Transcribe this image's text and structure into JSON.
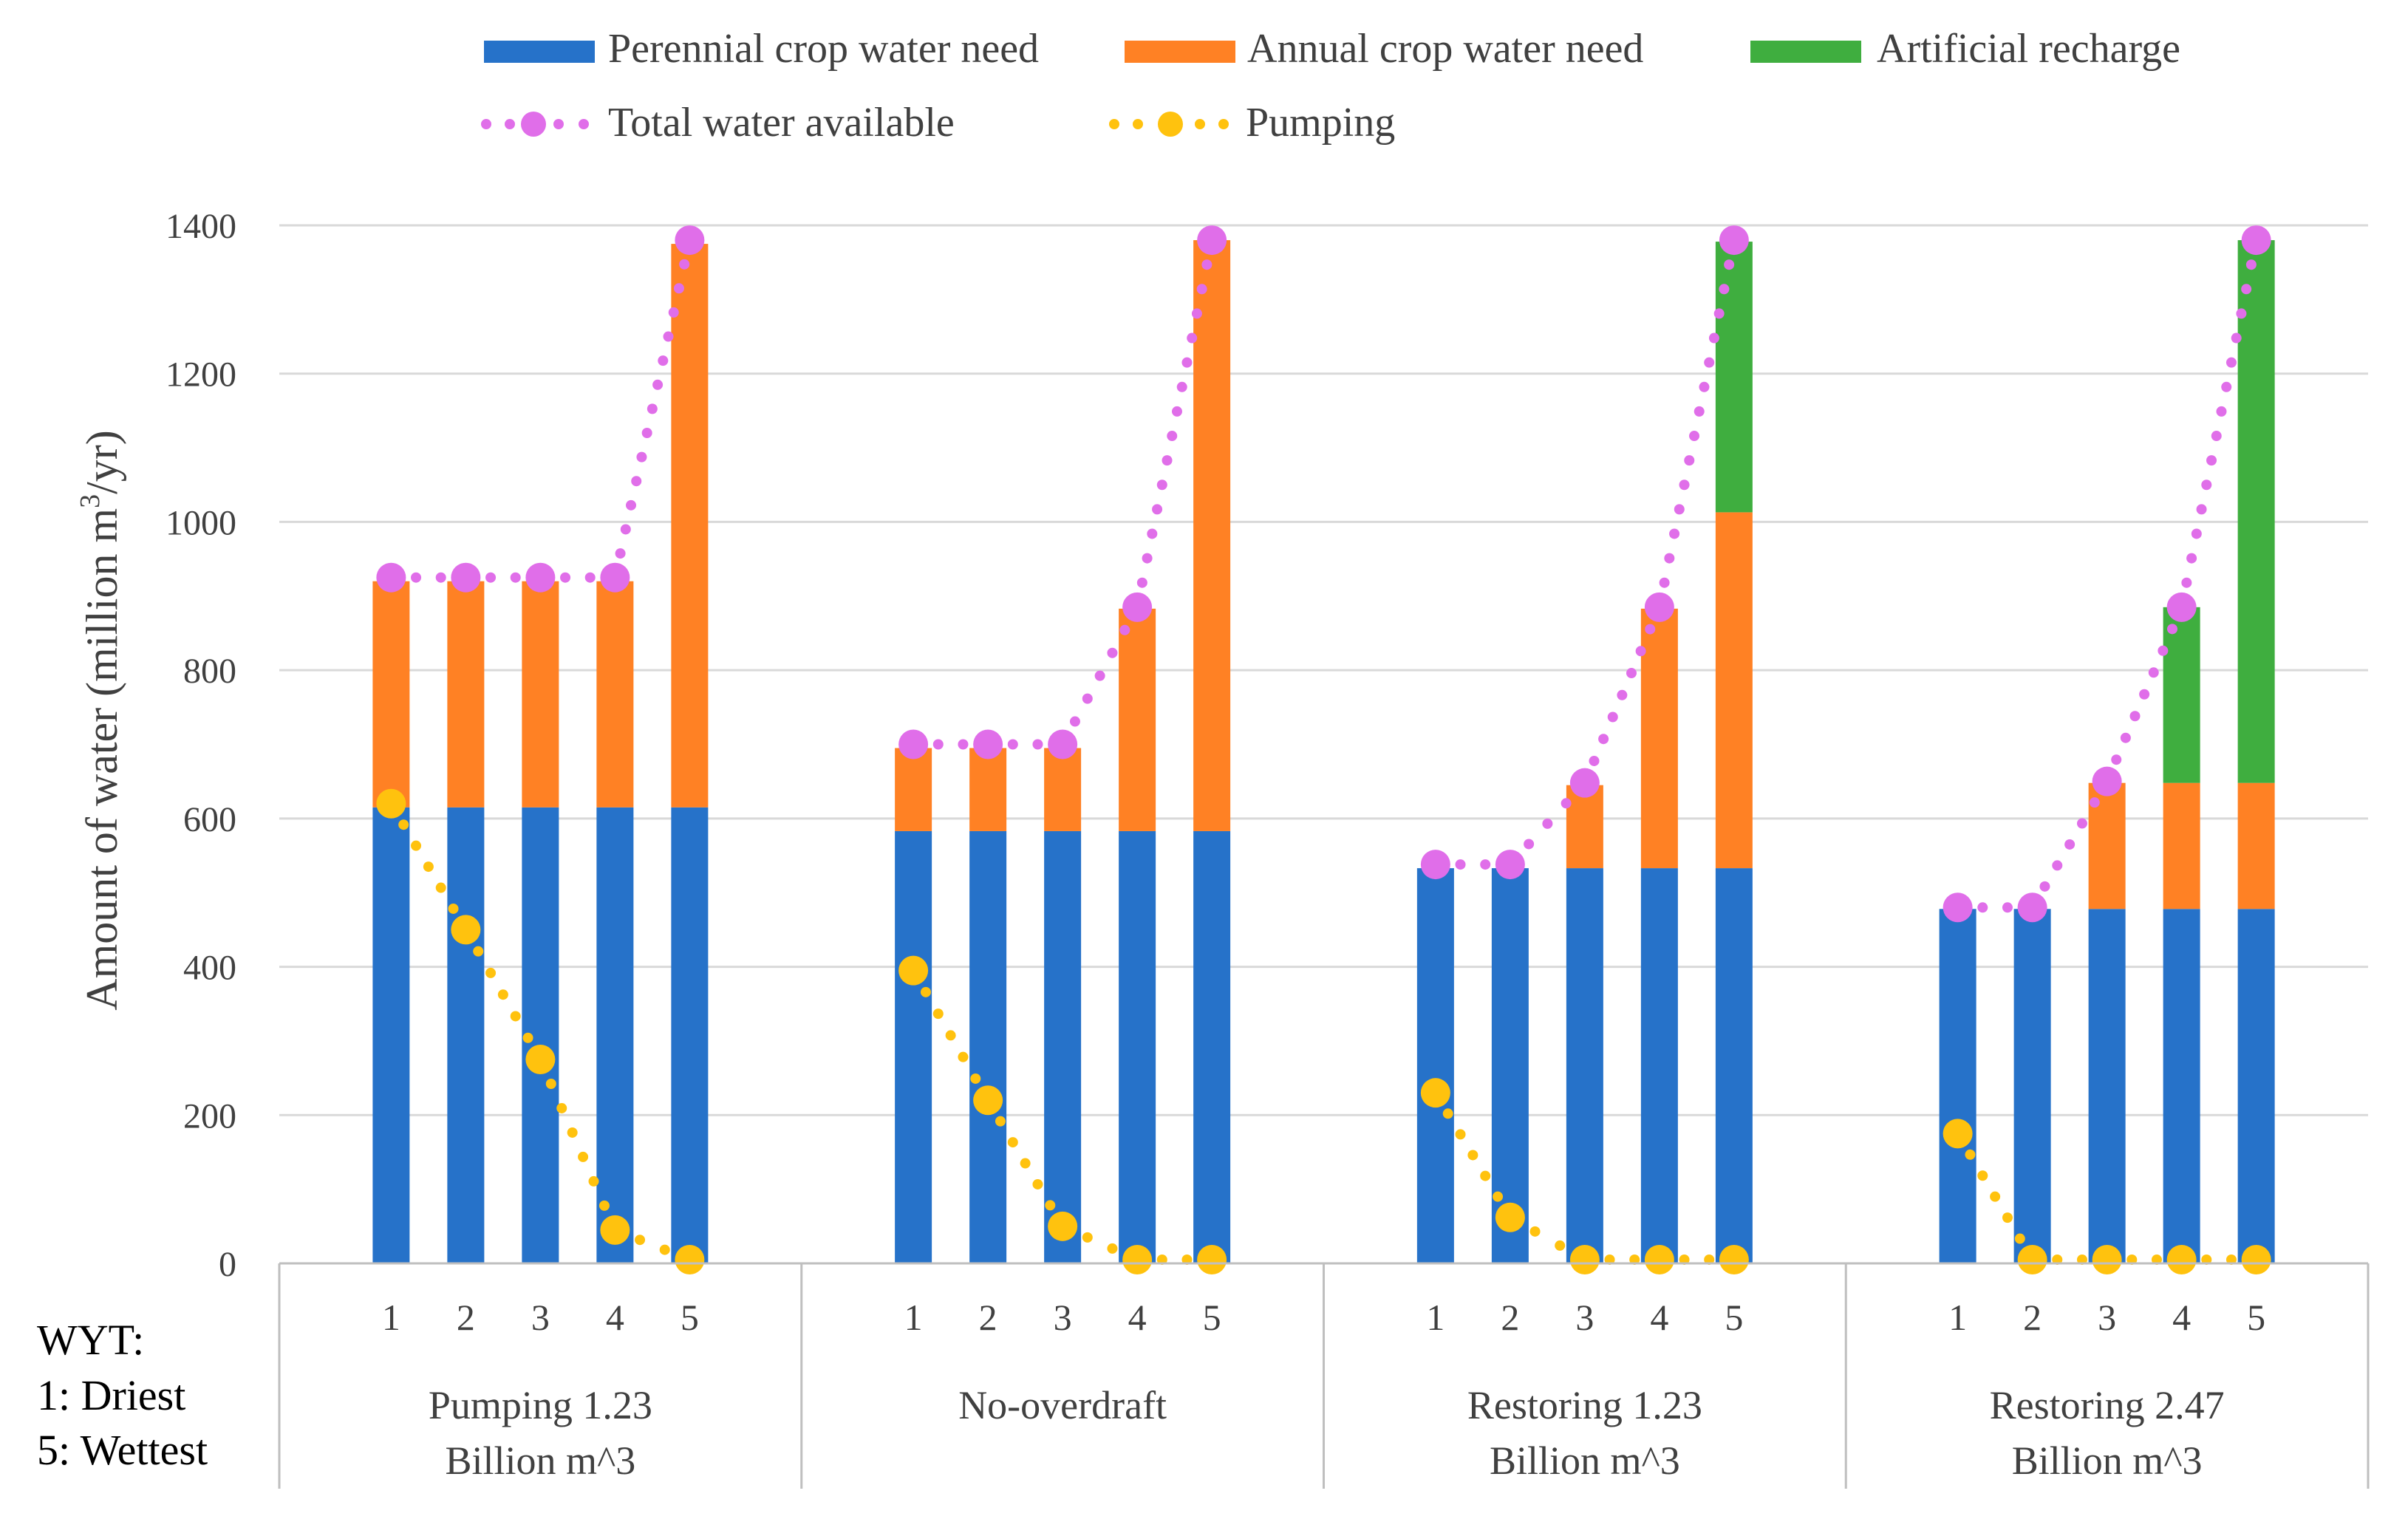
{
  "colors": {
    "perennial": "#2672C9",
    "annual": "#FF8124",
    "recharge": "#3FAE3F",
    "total": "#E06EE9",
    "pumping": "#FFC20E"
  },
  "legend": {
    "perennial": "Perennial crop water need",
    "annual": "Annual crop water need",
    "recharge": "Artificial recharge",
    "total": "Total water available",
    "pumping": "Pumping"
  },
  "axis": {
    "ylabel_prefix": "Amount of water (million m",
    "ylabel_sup": "3",
    "ylabel_suffix": "/yr)"
  },
  "wyt": {
    "line1": "WYT:",
    "line2": "1: Driest",
    "line3": "5: Wettest"
  },
  "chart_data": {
    "type": "bar",
    "stacked": true,
    "ylim": [
      0,
      1400
    ],
    "yticks": [
      0,
      200,
      400,
      600,
      800,
      1000,
      1200,
      1400
    ],
    "ylabel": "Amount of water (million m3/yr)",
    "grid": true,
    "legend_position": "top",
    "categories": [
      "1",
      "2",
      "3",
      "4",
      "5"
    ],
    "groups": [
      {
        "name_line1": "Pumping 1.23",
        "name_line2": "Billion m^3",
        "perennial": [
          615,
          615,
          615,
          615,
          615
        ],
        "annual": [
          305,
          305,
          305,
          305,
          760
        ],
        "recharge": [
          0,
          0,
          0,
          0,
          0
        ],
        "total": [
          925,
          925,
          925,
          925,
          1380
        ],
        "pumping": [
          620,
          450,
          275,
          45,
          5
        ]
      },
      {
        "name_line1": "No-overdraft",
        "name_line2": "",
        "perennial": [
          583,
          583,
          583,
          583,
          583
        ],
        "annual": [
          112,
          112,
          112,
          300,
          797
        ],
        "recharge": [
          0,
          0,
          0,
          0,
          0
        ],
        "total": [
          700,
          700,
          700,
          885,
          1380
        ],
        "pumping": [
          395,
          220,
          50,
          5,
          5
        ]
      },
      {
        "name_line1": "Restoring 1.23",
        "name_line2": "Billion m^3",
        "perennial": [
          533,
          533,
          533,
          533,
          533
        ],
        "annual": [
          0,
          0,
          112,
          350,
          480
        ],
        "recharge": [
          0,
          0,
          0,
          0,
          365
        ],
        "total": [
          538,
          538,
          648,
          885,
          1380
        ],
        "pumping": [
          230,
          62,
          5,
          5,
          5
        ]
      },
      {
        "name_line1": "Restoring 2.47",
        "name_line2": "Billion m^3",
        "perennial": [
          478,
          478,
          478,
          478,
          478
        ],
        "annual": [
          0,
          0,
          170,
          170,
          170
        ],
        "recharge": [
          0,
          0,
          0,
          237,
          732
        ],
        "total": [
          480,
          480,
          650,
          885,
          1380
        ],
        "pumping": [
          175,
          5,
          5,
          5,
          5
        ]
      }
    ]
  }
}
